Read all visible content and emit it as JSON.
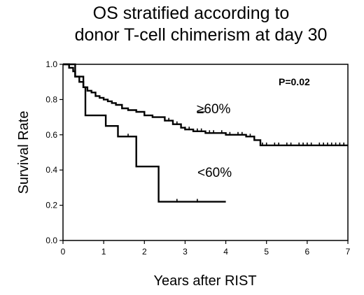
{
  "chart_data": {
    "type": "line",
    "title_lines": [
      "OS stratified according to",
      "donor T-cell chimerism at day 30"
    ],
    "xlabel": "Years after RIST",
    "ylabel": "Survival Rate",
    "xlim": [
      0,
      7
    ],
    "ylim": [
      0,
      1.0
    ],
    "x_ticks": [
      "0",
      "1",
      "2",
      "3",
      "4",
      "5",
      "6",
      "7"
    ],
    "y_ticks": [
      "0.0",
      "0.2",
      "0.4",
      "0.6",
      "0.8",
      "1.0"
    ],
    "grid": false,
    "annotation": "P=0.02",
    "series": [
      {
        "name": "≥60%",
        "points": [
          [
            0,
            1.0
          ],
          [
            0.1,
            1.0
          ],
          [
            0.15,
            0.98
          ],
          [
            0.25,
            0.96
          ],
          [
            0.3,
            0.93
          ],
          [
            0.4,
            0.9
          ],
          [
            0.5,
            0.87
          ],
          [
            0.6,
            0.85
          ],
          [
            0.7,
            0.84
          ],
          [
            0.8,
            0.82
          ],
          [
            0.9,
            0.81
          ],
          [
            1.0,
            0.8
          ],
          [
            1.1,
            0.79
          ],
          [
            1.2,
            0.78
          ],
          [
            1.3,
            0.77
          ],
          [
            1.45,
            0.75
          ],
          [
            1.6,
            0.74
          ],
          [
            1.8,
            0.73
          ],
          [
            2.0,
            0.71
          ],
          [
            2.2,
            0.7
          ],
          [
            2.5,
            0.68
          ],
          [
            2.7,
            0.66
          ],
          [
            2.9,
            0.64
          ],
          [
            3.0,
            0.63
          ],
          [
            3.2,
            0.62
          ],
          [
            3.5,
            0.61
          ],
          [
            3.8,
            0.61
          ],
          [
            4.0,
            0.6
          ],
          [
            4.2,
            0.6
          ],
          [
            4.5,
            0.59
          ],
          [
            4.7,
            0.57
          ],
          [
            4.8,
            0.57
          ],
          [
            4.85,
            0.54
          ],
          [
            5.5,
            0.54
          ],
          [
            6.0,
            0.54
          ],
          [
            6.5,
            0.54
          ],
          [
            7.0,
            0.54
          ]
        ],
        "censor_x": [
          2.6,
          2.8,
          3.0,
          3.1,
          3.3,
          3.4,
          3.6,
          3.7,
          3.9,
          4.1,
          4.3,
          4.4,
          4.6,
          4.9,
          5.0,
          5.2,
          5.3,
          5.5,
          5.6,
          5.8,
          5.9,
          6.0,
          6.1,
          6.3,
          6.4,
          6.5,
          6.6,
          6.7,
          6.8,
          6.9
        ]
      },
      {
        "name": "<60%",
        "points": [
          [
            0,
            1.0
          ],
          [
            0.2,
            1.0
          ],
          [
            0.3,
            0.93
          ],
          [
            0.5,
            0.87
          ],
          [
            0.55,
            0.71
          ],
          [
            1.0,
            0.71
          ],
          [
            1.05,
            0.65
          ],
          [
            1.3,
            0.65
          ],
          [
            1.35,
            0.59
          ],
          [
            1.75,
            0.59
          ],
          [
            1.8,
            0.42
          ],
          [
            2.3,
            0.42
          ],
          [
            2.35,
            0.22
          ],
          [
            4.0,
            0.22
          ]
        ],
        "censor_x": [
          1.6,
          2.8,
          3.3
        ]
      }
    ],
    "series_labels": [
      "≥60%",
      "<60%"
    ]
  }
}
